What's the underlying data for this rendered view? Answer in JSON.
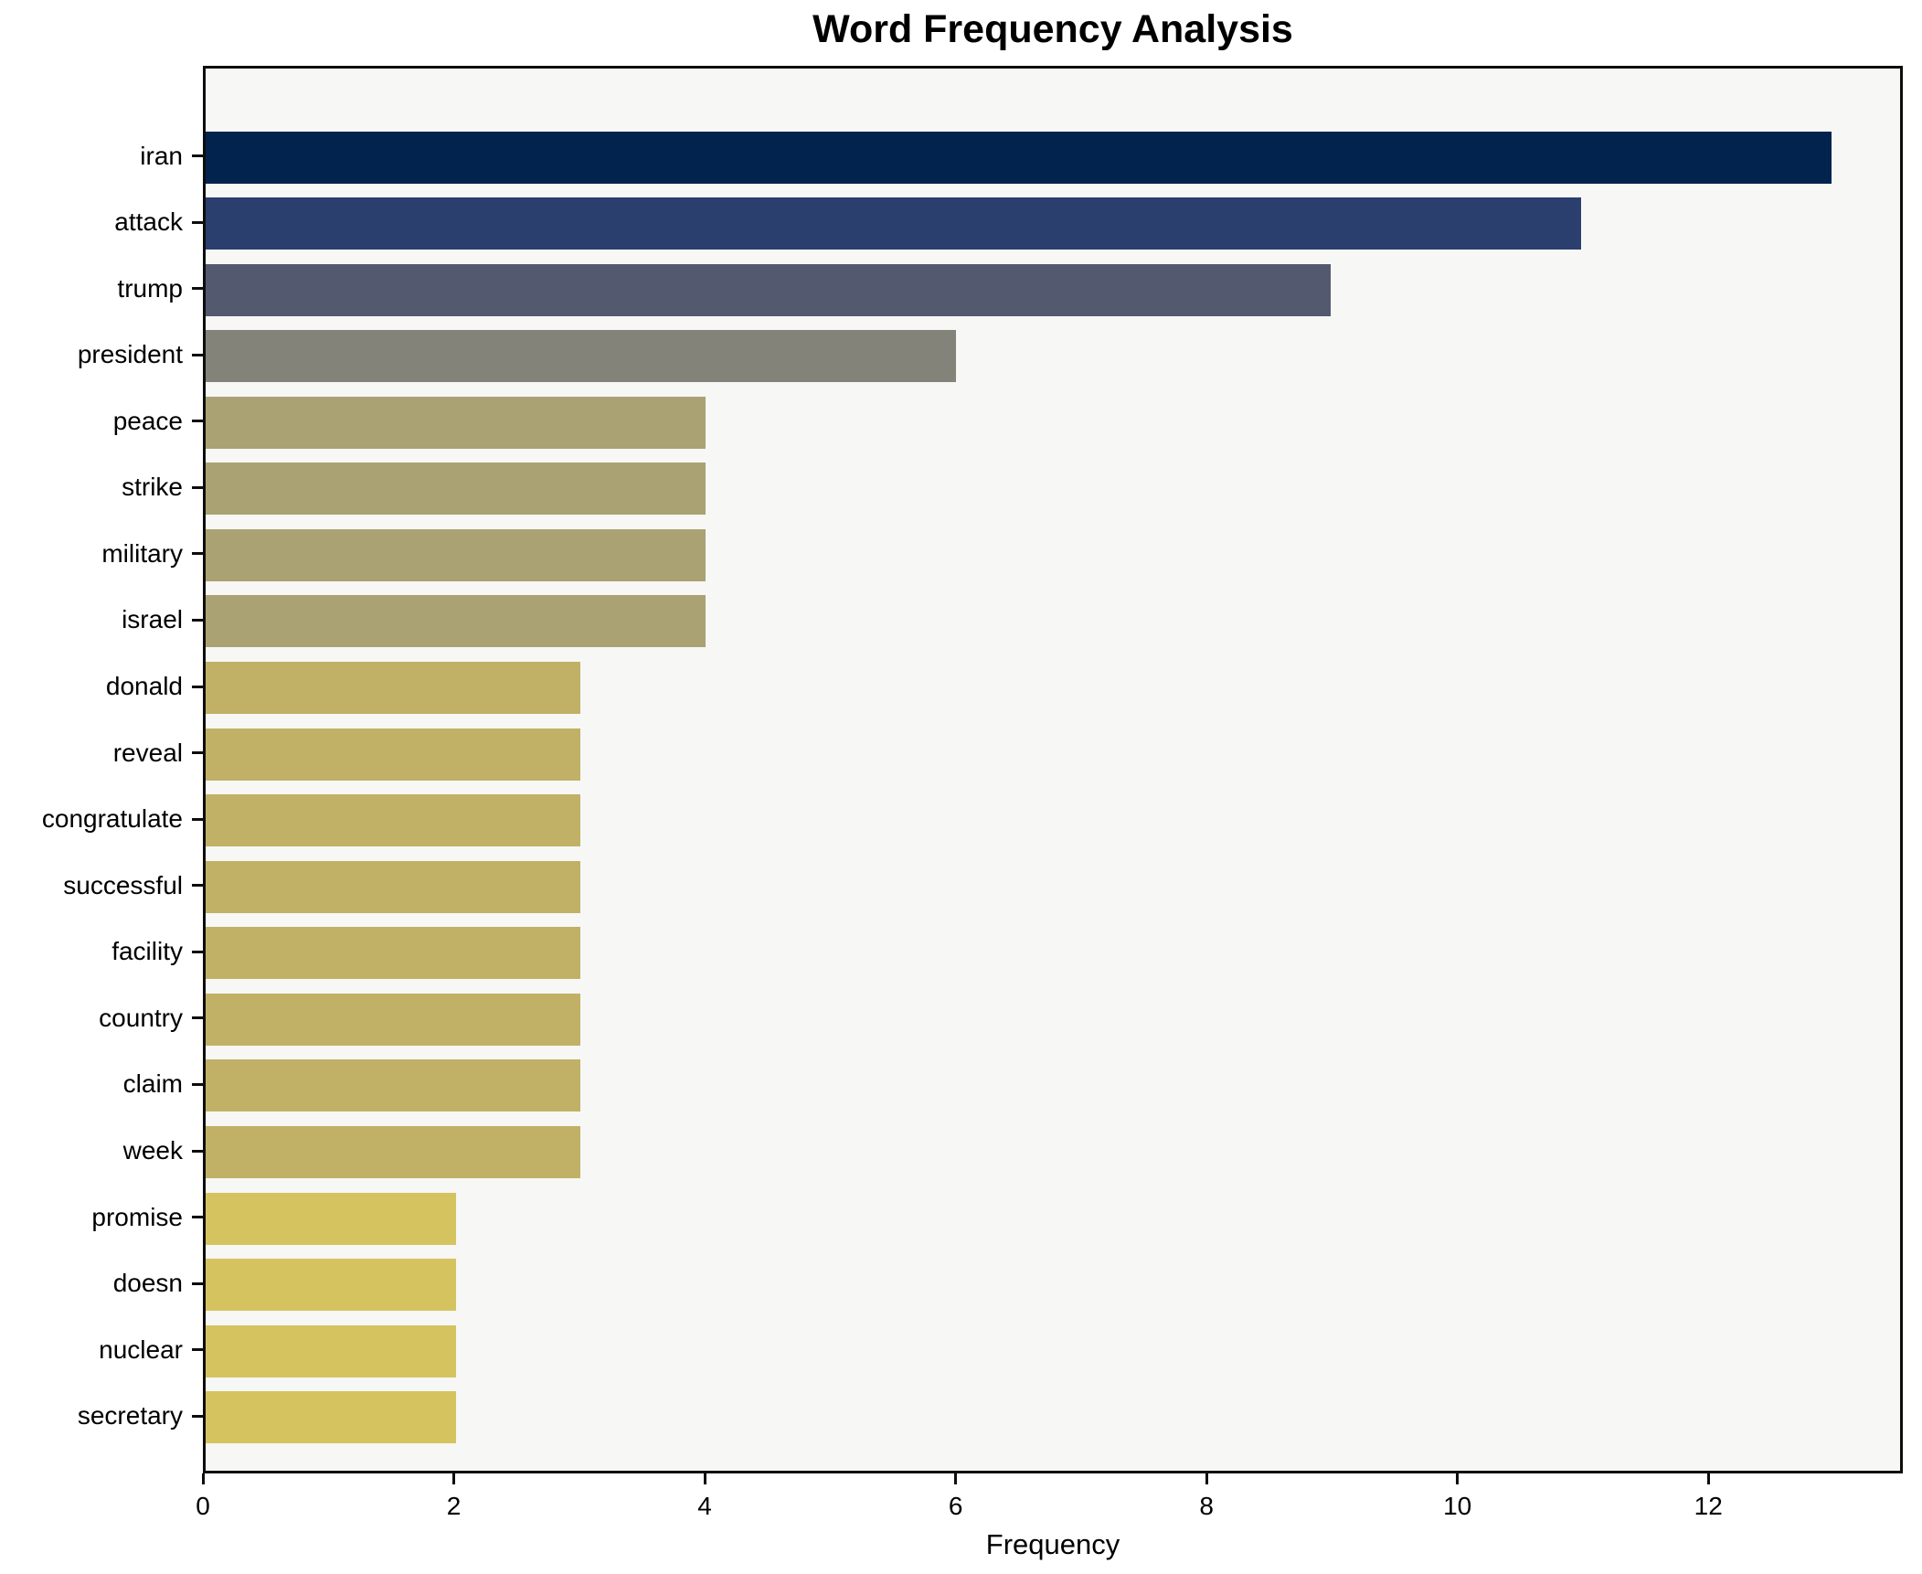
{
  "title": "Word Frequency Analysis",
  "xlabel": "Frequency",
  "x_ticks": [
    "0",
    "2",
    "4",
    "6",
    "8",
    "10",
    "12"
  ],
  "x_tick_values": [
    0,
    2,
    4,
    6,
    8,
    10,
    12
  ],
  "colors": {
    "figure_bg": "#ffffff",
    "plot_bg": "#f7f7f6",
    "spine": "#0d0d0d",
    "text": "#000000"
  },
  "chart_data": {
    "type": "bar",
    "orientation": "horizontal",
    "title": "Word Frequency Analysis",
    "xlabel": "Frequency",
    "ylabel": "",
    "xlim": [
      0,
      13.55
    ],
    "grid": false,
    "legend": false,
    "colormap_note": "cividis colormap, darkest for highest frequency",
    "categories": [
      "iran",
      "attack",
      "trump",
      "president",
      "peace",
      "strike",
      "military",
      "israel",
      "donald",
      "reveal",
      "congratulate",
      "successful",
      "facility",
      "country",
      "claim",
      "week",
      "promise",
      "doesn",
      "nuclear",
      "secretary"
    ],
    "values": [
      13,
      11,
      9,
      6,
      4,
      4,
      4,
      4,
      3,
      3,
      3,
      3,
      3,
      3,
      3,
      3,
      2,
      2,
      2,
      2
    ],
    "bar_colors": [
      "#02234d",
      "#2a3f6d",
      "#53596e",
      "#848379",
      "#aba273",
      "#aba273",
      "#aba273",
      "#aba273",
      "#c0b166",
      "#c0b166",
      "#c0b166",
      "#c0b166",
      "#c0b166",
      "#c0b166",
      "#c0b166",
      "#c0b166",
      "#d5c360",
      "#d5c360",
      "#d5c360",
      "#d5c360"
    ]
  }
}
